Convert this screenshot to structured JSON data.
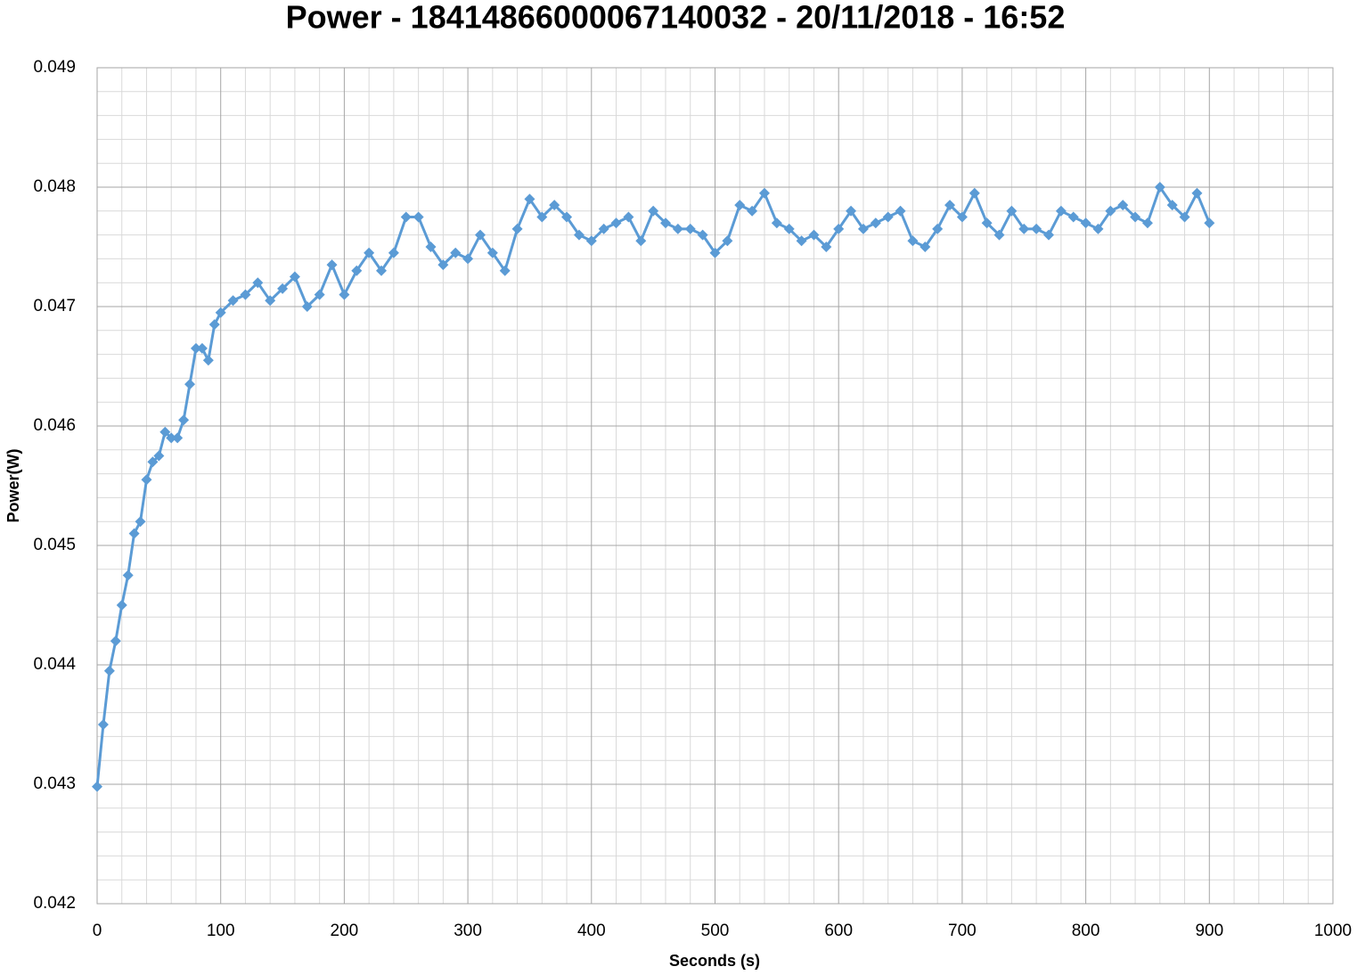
{
  "chart_data": {
    "type": "line",
    "title": "Power - 18414866000067140032 - 20/11/2018 - 16:52",
    "x_label": "Seconds (s)",
    "y_label": "Power(W)",
    "x": [
      0,
      5,
      10,
      15,
      20,
      25,
      30,
      35,
      40,
      45,
      50,
      55,
      60,
      65,
      70,
      75,
      80,
      85,
      90,
      95,
      100,
      110,
      120,
      130,
      140,
      150,
      160,
      170,
      180,
      190,
      200,
      210,
      220,
      230,
      240,
      250,
      260,
      270,
      280,
      290,
      300,
      310,
      320,
      330,
      340,
      350,
      360,
      370,
      380,
      390,
      400,
      410,
      420,
      430,
      440,
      450,
      460,
      470,
      480,
      490,
      500,
      510,
      520,
      530,
      540,
      550,
      560,
      570,
      580,
      590,
      600,
      610,
      620,
      630,
      640,
      650,
      660,
      670,
      680,
      690,
      700,
      710,
      720,
      730,
      740,
      750,
      760,
      770,
      780,
      790,
      800,
      810,
      820,
      830,
      840,
      850,
      860,
      870,
      880,
      890,
      900
    ],
    "series": [
      {
        "name": "Power",
        "color": "#5b9bd5",
        "marker": "diamond",
        "values": [
          0.04298,
          0.0435,
          0.04395,
          0.0442,
          0.0445,
          0.04475,
          0.0451,
          0.0452,
          0.04555,
          0.0457,
          0.04575,
          0.04595,
          0.0459,
          0.0459,
          0.04605,
          0.04635,
          0.04665,
          0.04665,
          0.04655,
          0.04685,
          0.04695,
          0.04705,
          0.0471,
          0.0472,
          0.04705,
          0.04715,
          0.04725,
          0.047,
          0.0471,
          0.04735,
          0.0471,
          0.0473,
          0.04745,
          0.0473,
          0.04745,
          0.04775,
          0.04775,
          0.0475,
          0.04735,
          0.04745,
          0.0474,
          0.0476,
          0.04745,
          0.0473,
          0.04765,
          0.0479,
          0.04775,
          0.04785,
          0.04775,
          0.0476,
          0.04755,
          0.04765,
          0.0477,
          0.04775,
          0.04755,
          0.0478,
          0.0477,
          0.04765,
          0.04765,
          0.0476,
          0.04745,
          0.04755,
          0.04785,
          0.0478,
          0.04795,
          0.0477,
          0.04765,
          0.04755,
          0.0476,
          0.0475,
          0.04765,
          0.0478,
          0.04765,
          0.0477,
          0.04775,
          0.0478,
          0.04755,
          0.0475,
          0.04765,
          0.04785,
          0.04775,
          0.04795,
          0.0477,
          0.0476,
          0.0478,
          0.04765,
          0.04765,
          0.0476,
          0.0478,
          0.04775,
          0.0477,
          0.04765,
          0.0478,
          0.04785,
          0.04775,
          0.0477,
          0.048,
          0.04785,
          0.04775,
          0.04795,
          0.0477
        ]
      }
    ],
    "xlim": [
      0,
      1000
    ],
    "xticks": [
      0,
      100,
      200,
      300,
      400,
      500,
      600,
      700,
      800,
      900,
      1000
    ],
    "ylim": [
      0.042,
      0.049
    ],
    "yticks": [
      0.042,
      0.043,
      0.044,
      0.045,
      0.046,
      0.047,
      0.048,
      0.049
    ],
    "grid": true
  }
}
